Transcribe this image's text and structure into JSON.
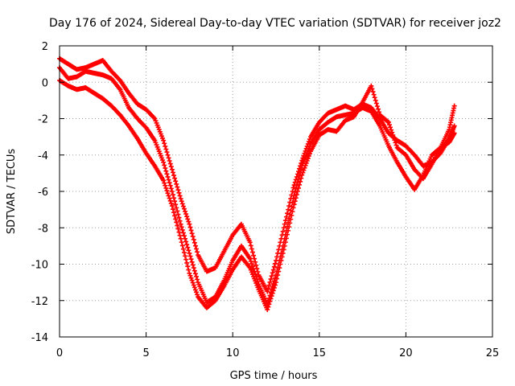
{
  "chart_data": {
    "type": "scatter",
    "title": "Day 176 of 2024, Sidereal Day-to-day VTEC variation (SDTVAR) for receiver joz2",
    "xlabel": "GPS time / hours",
    "ylabel": "SDTVAR / TECUs",
    "xlim": [
      0,
      25
    ],
    "ylim": [
      -14,
      2
    ],
    "xticks": [
      "0",
      "5",
      "10",
      "15",
      "20",
      "25"
    ],
    "yticks": [
      "2",
      "0",
      "-2",
      "-4",
      "-6",
      "-8",
      "-10",
      "-12",
      "-14"
    ],
    "grid": true,
    "marker": "plus",
    "color": "#ff0000",
    "series": [
      {
        "name": "trace-a",
        "x": [
          0.0,
          0.5,
          1.0,
          1.5,
          2.0,
          2.5,
          3.0,
          3.5,
          4.0,
          4.5,
          5.0,
          5.5,
          6.0,
          6.5,
          7.0,
          7.5,
          8.0,
          8.5,
          9.0,
          9.5,
          10.0,
          10.5,
          11.0,
          11.5,
          12.0,
          12.5,
          13.0,
          13.5,
          14.0,
          14.5,
          15.0,
          15.5,
          16.0,
          16.5,
          17.0,
          17.5,
          18.0,
          18.5,
          19.0,
          19.5,
          20.0,
          20.5,
          21.0,
          21.5,
          22.0,
          22.5,
          22.8
        ],
        "y": [
          1.3,
          1.0,
          0.7,
          0.8,
          1.0,
          1.2,
          0.6,
          0.1,
          -0.6,
          -1.2,
          -1.5,
          -2.0,
          -3.2,
          -4.8,
          -6.4,
          -7.8,
          -9.5,
          -10.4,
          -10.2,
          -9.3,
          -8.4,
          -7.8,
          -8.8,
          -10.6,
          -11.5,
          -9.8,
          -7.8,
          -5.8,
          -4.3,
          -3.0,
          -2.2,
          -1.7,
          -1.5,
          -1.3,
          -1.5,
          -1.2,
          -1.4,
          -2.0,
          -2.8,
          -3.2,
          -3.5,
          -4.0,
          -4.6,
          -4.4,
          -3.9,
          -3.1,
          -2.4
        ]
      },
      {
        "name": "trace-b",
        "x": [
          0.0,
          0.5,
          1.0,
          1.5,
          2.0,
          2.5,
          3.0,
          3.5,
          4.0,
          4.5,
          5.0,
          5.5,
          6.0,
          6.5,
          7.0,
          7.5,
          8.0,
          8.5,
          9.0,
          9.5,
          10.0,
          10.5,
          11.0,
          11.5,
          12.0,
          12.5,
          13.0,
          13.5,
          14.0,
          14.5,
          15.0,
          15.5,
          16.0,
          16.5,
          17.0,
          17.5,
          18.0,
          18.5,
          19.0,
          19.5,
          20.0,
          20.5,
          21.0,
          21.5,
          22.0,
          22.5,
          22.8
        ],
        "y": [
          0.8,
          0.2,
          0.3,
          0.6,
          0.5,
          0.4,
          0.2,
          -0.4,
          -1.4,
          -2.0,
          -2.5,
          -3.2,
          -4.4,
          -6.0,
          -7.8,
          -9.4,
          -11.0,
          -12.1,
          -11.8,
          -10.9,
          -9.8,
          -9.0,
          -9.7,
          -11.1,
          -12.2,
          -10.6,
          -8.6,
          -6.4,
          -4.6,
          -3.4,
          -2.6,
          -2.2,
          -1.9,
          -1.8,
          -1.7,
          -1.4,
          -1.6,
          -2.4,
          -3.5,
          -4.4,
          -5.2,
          -5.9,
          -5.1,
          -4.0,
          -3.6,
          -3.3,
          -2.8
        ]
      },
      {
        "name": "trace-c",
        "x": [
          0.0,
          0.5,
          1.0,
          1.5,
          2.0,
          2.5,
          3.0,
          3.5,
          4.0,
          4.5,
          5.0,
          5.5,
          6.0,
          6.5,
          7.0,
          7.5,
          8.0,
          8.5,
          9.0,
          9.5,
          10.0,
          10.5,
          11.0,
          11.5,
          12.0,
          12.5,
          13.0,
          13.5,
          14.0,
          14.5,
          15.0,
          15.5,
          16.0,
          16.5,
          17.0,
          17.5,
          18.0,
          18.5,
          19.0,
          19.5,
          20.0,
          20.5,
          21.0,
          21.5,
          22.0,
          22.5,
          22.8
        ],
        "y": [
          0.1,
          -0.2,
          -0.4,
          -0.3,
          -0.6,
          -0.9,
          -1.3,
          -1.8,
          -2.4,
          -3.1,
          -3.9,
          -4.6,
          -5.4,
          -6.8,
          -8.6,
          -10.5,
          -11.8,
          -12.4,
          -12.0,
          -11.2,
          -10.3,
          -9.6,
          -10.2,
          -11.4,
          -12.5,
          -11.0,
          -9.0,
          -6.9,
          -5.1,
          -3.8,
          -2.9,
          -2.6,
          -2.7,
          -2.1,
          -1.9,
          -1.1,
          -0.2,
          -1.8,
          -2.2,
          -3.6,
          -4.0,
          -4.8,
          -5.3,
          -4.5,
          -3.6,
          -2.6,
          -1.3
        ]
      }
    ]
  }
}
